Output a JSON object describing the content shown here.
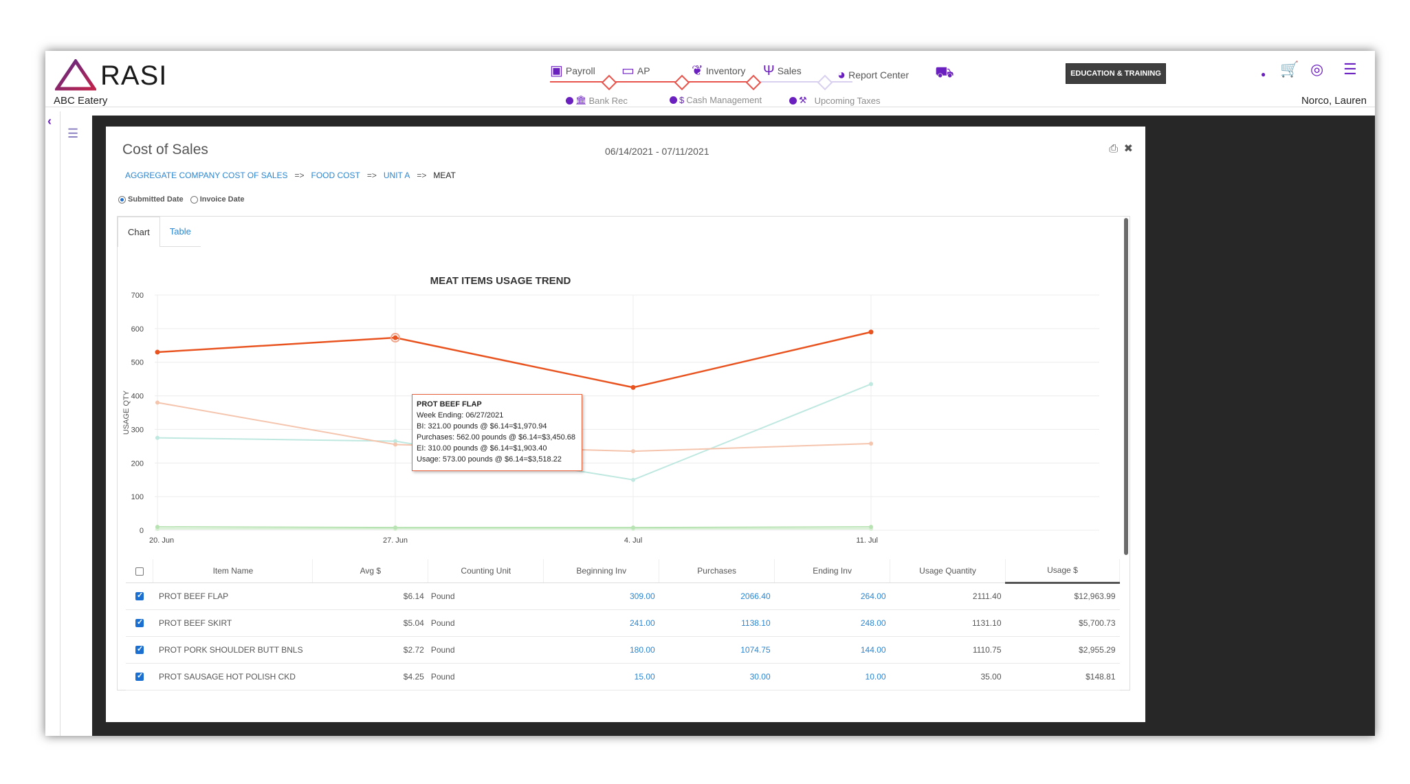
{
  "header": {
    "brand": "RASI",
    "company": "ABC Eatery",
    "user": "Norco, Lauren",
    "education_button": "EDUCATION & TRAINING",
    "nav": [
      {
        "label": "Payroll",
        "icon": "payroll-icon"
      },
      {
        "label": "AP",
        "icon": "card-icon"
      },
      {
        "label": "Inventory",
        "icon": "leaf-icon"
      },
      {
        "label": "Sales",
        "icon": "utensils-icon"
      },
      {
        "label": "Report Center",
        "icon": "pie-chart-icon"
      }
    ],
    "subnav": [
      {
        "label": "Bank Rec"
      },
      {
        "label": "Cash Management"
      },
      {
        "label": "Upcoming Taxes"
      }
    ],
    "accent_color": "#6a1fbf"
  },
  "modal": {
    "title": "Cost of Sales",
    "date_range": "06/14/2021 - 07/11/2021",
    "breadcrumbs": [
      "AGGREGATE COMPANY COST OF SALES",
      "FOOD COST",
      "UNIT A",
      "MEAT"
    ],
    "breadcrumb_sep": "=>",
    "radio_submitted": "Submitted Date",
    "radio_invoice": "Invoice Date",
    "tab_chart": "Chart",
    "tab_table": "Table"
  },
  "chart_data": {
    "type": "line",
    "title": "MEAT ITEMS USAGE TREND",
    "ylabel": "USAGE QTY",
    "xlabel": "",
    "categories": [
      "20. Jun",
      "27. Jun",
      "4. Jul",
      "11. Jul"
    ],
    "ylim": [
      0,
      700
    ],
    "yticks": [
      0,
      100,
      200,
      300,
      400,
      500,
      600,
      700
    ],
    "series": [
      {
        "values": [
          530,
          573,
          425,
          590
        ],
        "color": "#e8531f"
      },
      {
        "values": [
          380,
          255,
          235,
          258
        ],
        "color": "#f5c4ad"
      },
      {
        "values": [
          275,
          265,
          150,
          435
        ],
        "color": "#bfe8e0"
      },
      {
        "values": [
          10,
          8,
          8,
          10
        ],
        "color": "#b7e2b2"
      },
      {
        "values": [
          4,
          4,
          4,
          4
        ],
        "color": "#d6efd3"
      }
    ],
    "tooltip": {
      "title": "PROT BEEF FLAP",
      "lines": [
        "Week Ending: 06/27/2021",
        "BI: 321.00 pounds @ $6.14=$1,970.94",
        "Purchases: 562.00 pounds @ $6.14=$3,450.68",
        "EI: 310.00 pounds @ $6.14=$1,903.40",
        "Usage: 573.00 pounds @ $6.14=$3,518.22"
      ]
    }
  },
  "table": {
    "columns": [
      "Item Name",
      "Avg $",
      "Counting Unit",
      "Beginning Inv",
      "Purchases",
      "Ending Inv",
      "Usage Quantity",
      "Usage $"
    ],
    "rows": [
      {
        "name": "PROT BEEF FLAP",
        "avg": "$6.14",
        "unit": "Pound",
        "begin": "309.00",
        "purchases": "2066.40",
        "end": "264.00",
        "usage_qty": "2111.40",
        "usage_amt": "$12,963.99"
      },
      {
        "name": "PROT BEEF SKIRT",
        "avg": "$5.04",
        "unit": "Pound",
        "begin": "241.00",
        "purchases": "1138.10",
        "end": "248.00",
        "usage_qty": "1131.10",
        "usage_amt": "$5,700.73"
      },
      {
        "name": "PROT PORK SHOULDER BUTT BNLS",
        "avg": "$2.72",
        "unit": "Pound",
        "begin": "180.00",
        "purchases": "1074.75",
        "end": "144.00",
        "usage_qty": "1110.75",
        "usage_amt": "$2,955.29"
      },
      {
        "name": "PROT SAUSAGE HOT POLISH CKD",
        "avg": "$4.25",
        "unit": "Pound",
        "begin": "15.00",
        "purchases": "30.00",
        "end": "10.00",
        "usage_qty": "35.00",
        "usage_amt": "$148.81"
      }
    ]
  }
}
